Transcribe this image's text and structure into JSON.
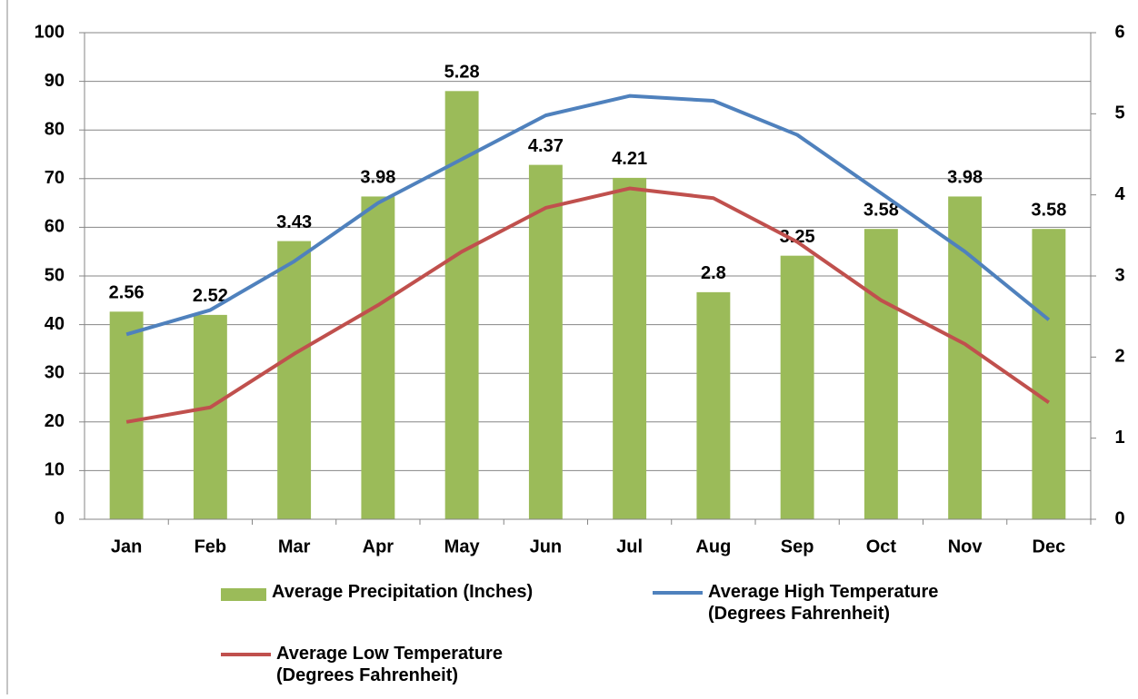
{
  "chart_data": {
    "type": "bar_line",
    "categories": [
      "Jan",
      "Feb",
      "Mar",
      "Apr",
      "May",
      "Jun",
      "Jul",
      "Aug",
      "Sep",
      "Oct",
      "Nov",
      "Dec"
    ],
    "series": [
      {
        "name": "Average Precipitation (Inches)",
        "type": "bar",
        "axis": "y2",
        "color": "#9bbb59",
        "values": [
          2.56,
          2.52,
          3.43,
          3.98,
          5.28,
          4.37,
          4.21,
          2.8,
          3.25,
          3.58,
          3.98,
          3.58
        ]
      },
      {
        "name": "Average High Temperature (Degrees Fahrenheit)",
        "type": "line",
        "color": "#4f81bd",
        "values": [
          38,
          43,
          53,
          65,
          74,
          83,
          87,
          86,
          79,
          67,
          55,
          41
        ]
      },
      {
        "name": "Average Low Temperature (Degrees Fahrenheit)",
        "type": "line",
        "color": "#c0504d",
        "values": [
          20,
          23,
          34,
          44,
          55,
          64,
          68,
          66,
          57,
          45,
          36,
          24
        ]
      }
    ],
    "ylim": [
      0,
      100
    ],
    "yticks": [
      0,
      10,
      20,
      30,
      40,
      50,
      60,
      70,
      80,
      90,
      100
    ],
    "y2lim": [
      0,
      6
    ],
    "y2ticks": [
      0,
      1,
      2,
      3,
      4,
      5,
      6
    ],
    "grid": true,
    "legend": "bottom"
  }
}
